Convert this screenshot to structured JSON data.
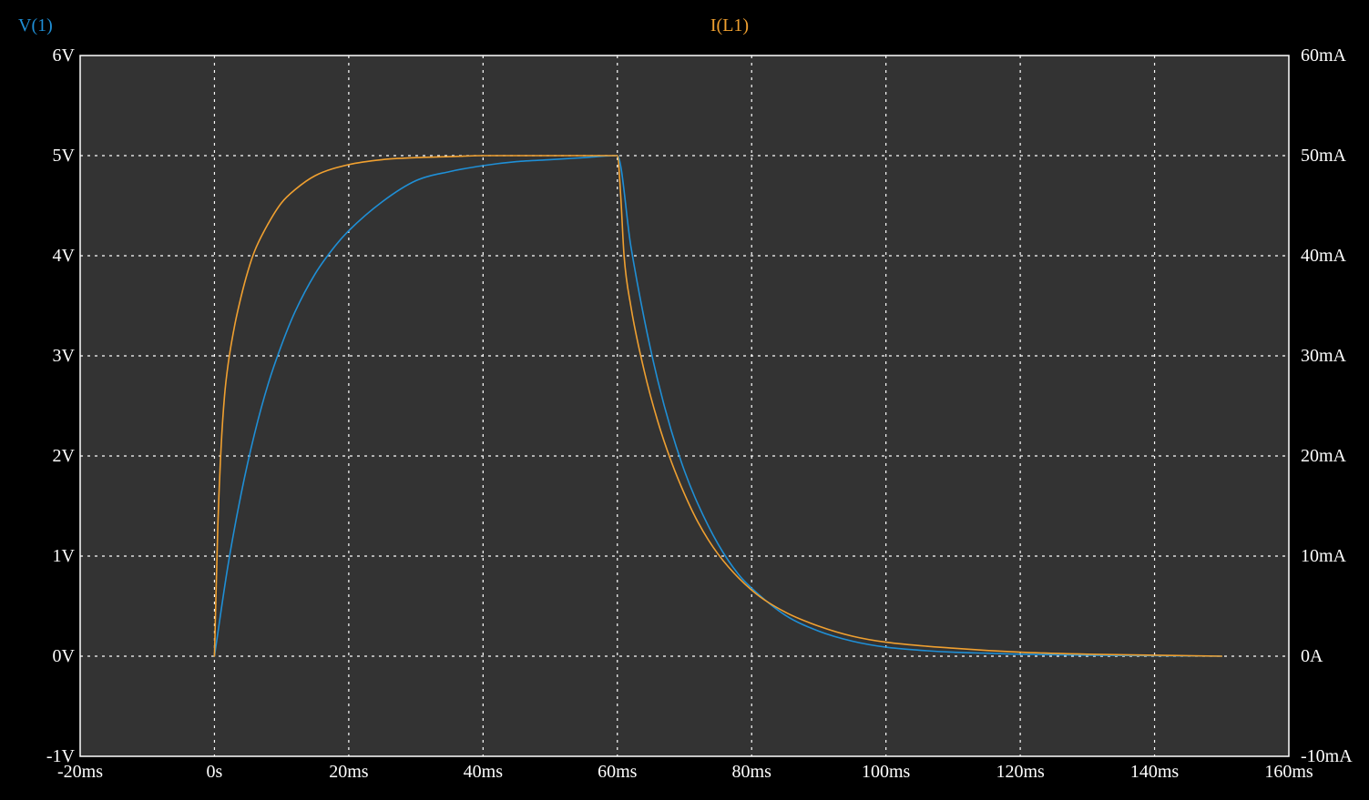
{
  "chart_data": {
    "type": "line",
    "background_color": "#000000",
    "plot_background_color": "#333333",
    "grid": true,
    "grid_color": "#ffffff",
    "grid_style": "dotted",
    "text_color": "#ffffff",
    "x_axis": {
      "range": [
        -0.02,
        0.16
      ],
      "ticks": [
        -0.02,
        0,
        0.02,
        0.04,
        0.06,
        0.08,
        0.1,
        0.12,
        0.14,
        0.16
      ],
      "tick_labels": [
        "-20ms",
        "0s",
        "20ms",
        "40ms",
        "60ms",
        "80ms",
        "100ms",
        "120ms",
        "140ms",
        "160ms"
      ]
    },
    "y_axis_left": {
      "label": "V(1)",
      "label_color": "#1f8fd6",
      "range": [
        -1,
        6
      ],
      "ticks": [
        -1,
        0,
        1,
        2,
        3,
        4,
        5,
        6
      ],
      "tick_labels": [
        "-1V",
        "0V",
        "1V",
        "2V",
        "3V",
        "4V",
        "5V",
        "6V"
      ]
    },
    "y_axis_right": {
      "label": "I(L1)",
      "label_color": "#f0a030",
      "range": [
        -0.01,
        0.06
      ],
      "ticks": [
        -0.01,
        0,
        0.01,
        0.02,
        0.03,
        0.04,
        0.05,
        0.06
      ],
      "tick_labels": [
        "-10mA",
        "0A",
        "10mA",
        "20mA",
        "30mA",
        "40mA",
        "50mA",
        "60mA"
      ]
    },
    "series": [
      {
        "name": "V(1)",
        "axis": "left",
        "color": "#1f8fd6",
        "x": [
          0,
          0.002,
          0.004,
          0.006,
          0.008,
          0.01,
          0.012,
          0.015,
          0.018,
          0.02,
          0.025,
          0.03,
          0.035,
          0.04,
          0.045,
          0.05,
          0.055,
          0.06,
          0.062,
          0.064,
          0.066,
          0.068,
          0.07,
          0.072,
          0.075,
          0.078,
          0.08,
          0.085,
          0.09,
          0.095,
          0.1,
          0.105,
          0.11,
          0.115,
          0.12,
          0.13,
          0.14,
          0.15
        ],
        "values": [
          0,
          0.9,
          1.63,
          2.23,
          2.72,
          3.11,
          3.44,
          3.82,
          4.1,
          4.25,
          4.54,
          4.75,
          4.84,
          4.9,
          4.94,
          4.96,
          4.98,
          5.0,
          4.1,
          3.37,
          2.76,
          2.26,
          1.85,
          1.52,
          1.12,
          0.82,
          0.68,
          0.41,
          0.25,
          0.15,
          0.09,
          0.06,
          0.04,
          0.03,
          0.02,
          0.01,
          0.005,
          0.0
        ]
      },
      {
        "name": "I(L1)",
        "axis": "right",
        "color": "#f0a030",
        "x": [
          0,
          0.0005,
          0.001,
          0.0015,
          0.002,
          0.003,
          0.004,
          0.005,
          0.006,
          0.008,
          0.01,
          0.012,
          0.015,
          0.02,
          0.025,
          0.03,
          0.035,
          0.04,
          0.05,
          0.06,
          0.0605,
          0.061,
          0.062,
          0.064,
          0.066,
          0.068,
          0.07,
          0.072,
          0.075,
          0.08,
          0.085,
          0.09,
          0.095,
          0.1,
          0.11,
          0.12,
          0.13,
          0.14,
          0.15
        ],
        "values": [
          0,
          0.013,
          0.021,
          0.026,
          0.029,
          0.033,
          0.036,
          0.0385,
          0.0405,
          0.0432,
          0.0453,
          0.0466,
          0.048,
          0.0491,
          0.0496,
          0.0498,
          0.0499,
          0.05,
          0.05,
          0.05,
          0.046,
          0.04,
          0.035,
          0.0285,
          0.0235,
          0.0195,
          0.0162,
          0.0134,
          0.0102,
          0.0066,
          0.0044,
          0.003,
          0.002,
          0.0014,
          0.0008,
          0.0004,
          0.0002,
          0.0001,
          0.0
        ]
      }
    ]
  }
}
